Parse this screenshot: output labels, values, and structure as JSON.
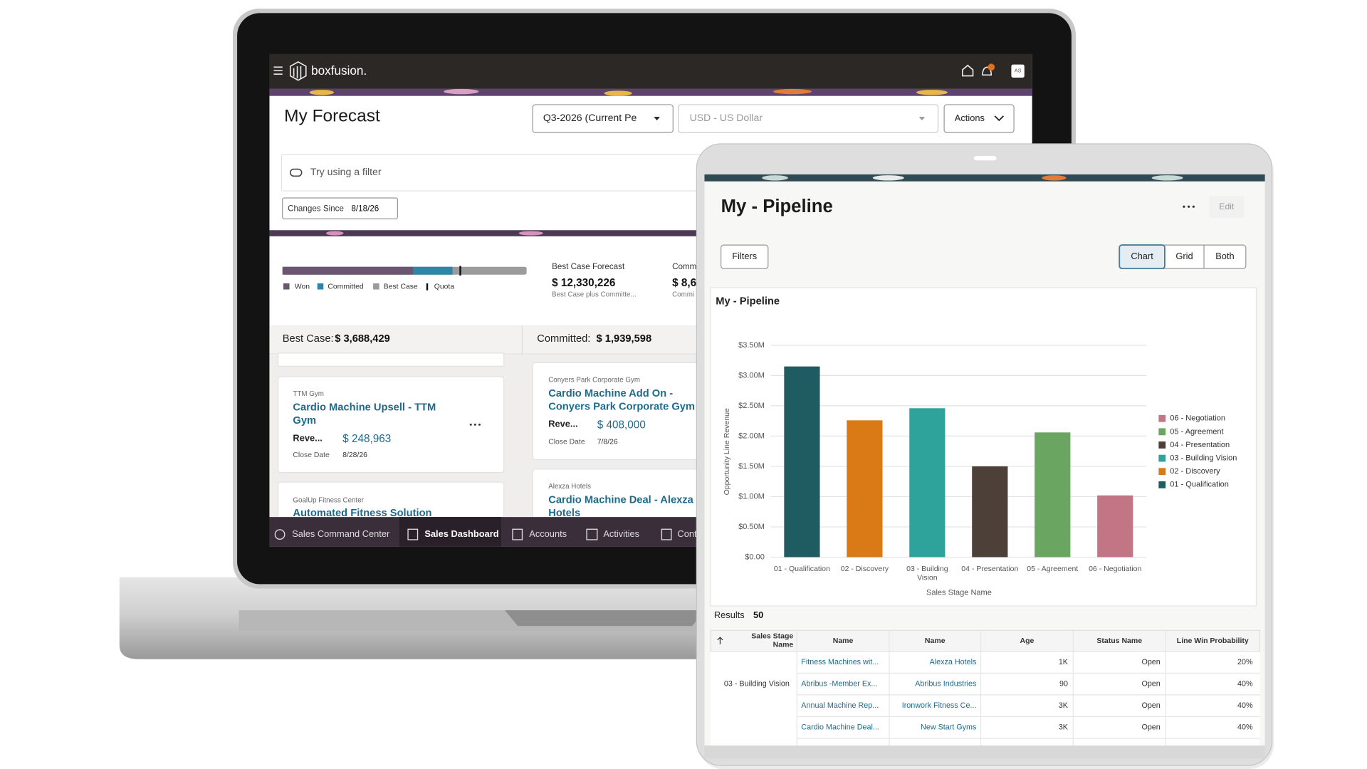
{
  "laptop": {
    "brand": "boxfusion.",
    "avatar": "AS",
    "title": "My Forecast",
    "period": "Q3-2026 (Current Pe",
    "currency": "USD - US Dollar",
    "actions": "Actions",
    "filter_placeholder": "Try using a filter",
    "changes_since": {
      "label": "Changes Since",
      "value": "8/18/26"
    },
    "legend": [
      "Won",
      "Committed",
      "Best Case",
      "Quota"
    ],
    "metrics": [
      {
        "label": "Best Case Forecast",
        "value": "$ 12,330,226",
        "note": "Best Case plus Committe..."
      },
      {
        "label": "Comm",
        "value": "$ 8,6",
        "note": "Commi"
      }
    ],
    "columns": [
      {
        "label": "Best Case:",
        "total": "$ 3,688,429",
        "cards": [
          {
            "account": "TTM Gym",
            "title": "Cardio Machine Upsell - TTM Gym",
            "revenue_label": "Reve...",
            "revenue": "$ 248,963",
            "date_label": "Close Date",
            "date": "8/28/26"
          },
          {
            "account": "GoalUp Fitness Center",
            "title": "Automated Fitness Solution"
          }
        ]
      },
      {
        "label": "Committed:",
        "total": "$ 1,939,598",
        "cards": [
          {
            "account": "Conyers Park Corporate Gym",
            "title": "Cardio Machine Add On - Conyers Park Corporate Gym",
            "revenue_label": "Reve...",
            "revenue": "$ 408,000",
            "date_label": "Close Date",
            "date": "7/8/26"
          },
          {
            "account": "Alexza Hotels",
            "title": "Cardio Machine Deal - Alexza Hotels"
          }
        ]
      }
    ],
    "nav": [
      "Sales Command Center",
      "Sales Dashboard",
      "Accounts",
      "Activities",
      "Cont"
    ]
  },
  "tablet": {
    "title": "My - Pipeline",
    "edit": "Edit",
    "filters": "Filters",
    "views": [
      "Chart",
      "Grid",
      "Both"
    ],
    "results_label": "Results",
    "results": "50",
    "table": {
      "columns": [
        "Sales Stage Name",
        "Name",
        "Name",
        "Age",
        "Status Name",
        "Line Win Probability"
      ],
      "rows": [
        [
          null,
          "Fitness Machines wit...",
          "Alexza Hotels",
          "1K",
          "Open",
          "20%"
        ],
        [
          "03 - Building Vision",
          "Abribus -Member Ex...",
          "Abribus Industries",
          "90",
          "Open",
          "40%"
        ],
        [
          null,
          "Annual Machine Rep...",
          "Ironwork Fitness Ce...",
          "3K",
          "Open",
          "40%"
        ],
        [
          null,
          "Cardio Machine Deal...",
          "New Start Gyms",
          "3K",
          "Open",
          "40%"
        ]
      ]
    }
  },
  "chart_data": {
    "type": "bar",
    "title": "My - Pipeline",
    "x_label": "Sales Stage Name",
    "y_label": "Opportunity Line Revenue",
    "categories": [
      "01 - Qualification",
      "02 - Discovery",
      "03 - Building Vision",
      "04 - Presentation",
      "05 - Agreement",
      "06 - Negotiation"
    ],
    "values": [
      3150000,
      2260000,
      2460000,
      1500000,
      2060000,
      1020000
    ],
    "colors": [
      "#1f5c61",
      "#d97a16",
      "#2ea39b",
      "#4d4038",
      "#6aa561",
      "#c27585"
    ],
    "ylim": [
      0,
      3500000
    ],
    "yticks": [
      {
        "value": 0,
        "label": "$0.00"
      },
      {
        "value": 500000,
        "label": "$0.50M"
      },
      {
        "value": 1000000,
        "label": "$1.00M"
      },
      {
        "value": 1500000,
        "label": "$1.50M"
      },
      {
        "value": 2000000,
        "label": "$2.00M"
      },
      {
        "value": 2500000,
        "label": "$2.50M"
      },
      {
        "value": 3000000,
        "label": "$3.00M"
      },
      {
        "value": 3500000,
        "label": "$3.50M"
      }
    ],
    "grid": true,
    "legend": "right"
  }
}
